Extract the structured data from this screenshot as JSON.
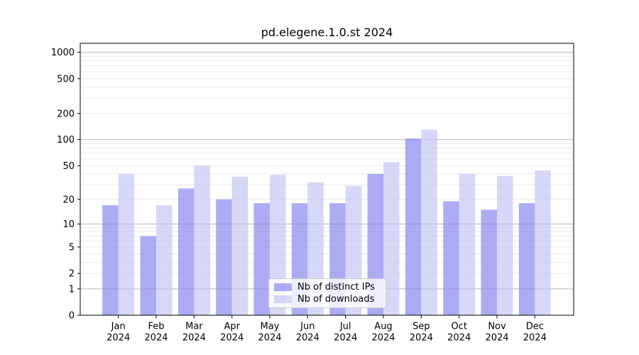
{
  "chart_data": {
    "type": "bar",
    "title": "pd.elegene.1.0.st 2024",
    "xlabel": "",
    "ylabel": "",
    "categories": [
      "Jan 2024",
      "Feb 2024",
      "Mar 2024",
      "Apr 2024",
      "May 2024",
      "Jun 2024",
      "Jul 2024",
      "Aug 2024",
      "Sep 2024",
      "Oct 2024",
      "Nov 2024",
      "Dec 2024"
    ],
    "series": [
      {
        "name": "Nb of distinct IPs",
        "color": "rgba(140,140,240,0.72)",
        "values": [
          17,
          7,
          27,
          20,
          18,
          18,
          18,
          40,
          103,
          19,
          15,
          18
        ]
      },
      {
        "name": "Nb of downloads",
        "color": "rgba(195,195,245,0.66)",
        "values": [
          40,
          17,
          50,
          37,
          39,
          32,
          29,
          55,
          130,
          40,
          38,
          44
        ]
      }
    ],
    "yscale": "log1p",
    "ylim": [
      0,
      1267
    ],
    "y_ticks": [
      0,
      1,
      2,
      5,
      10,
      20,
      50,
      100,
      200,
      500,
      1000
    ],
    "grid": true,
    "legend_position": "lower center",
    "axis_color": "#000000",
    "grid_major_color": "#b5b5b5",
    "grid_minor_color": "#e9e9e9"
  }
}
